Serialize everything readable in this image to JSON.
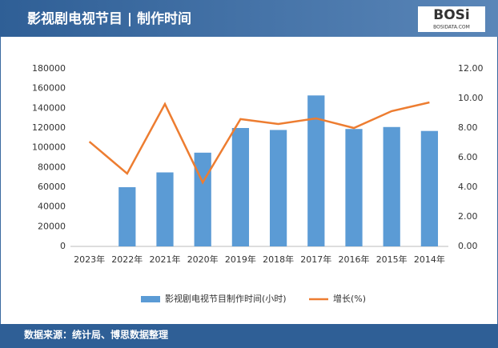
{
  "chart_data": {
    "type": "bar-line",
    "title": "影视剧电视节目 | 制作时间",
    "logo": "BOSi",
    "logo_sub": "BOSIDATA.COM",
    "source": "数据来源：统计局、博思数据整理",
    "categories": [
      "2023年",
      "2022年",
      "2021年",
      "2020年",
      "2019年",
      "2018年",
      "2017年",
      "2016年",
      "2015年",
      "2014年"
    ],
    "series": [
      {
        "name": "影视剧电视节目制作时间(小时)",
        "type": "bar",
        "color": "#5b9bd5",
        "values": [
          null,
          60000,
          75000,
          95000,
          120000,
          118000,
          153000,
          119000,
          121000,
          117000
        ]
      },
      {
        "name": "增长(%)",
        "type": "line",
        "axis": "y2",
        "color": "#ed7d31",
        "values": [
          7.08,
          4.92,
          9.62,
          4.32,
          8.6,
          8.27,
          8.65,
          8.0,
          9.14,
          9.73
        ]
      }
    ],
    "ylim": [
      0,
      180000
    ],
    "yticks": [
      0,
      20000,
      40000,
      60000,
      80000,
      100000,
      120000,
      140000,
      160000,
      180000
    ],
    "y2lim": [
      0,
      12
    ],
    "y2ticks": [
      {
        "value": 0,
        "label": "0.00"
      },
      {
        "value": 2,
        "label": "2.00"
      },
      {
        "value": 4,
        "label": "4.00"
      },
      {
        "value": 6,
        "label": "6.00"
      },
      {
        "value": 8,
        "label": "8.00"
      },
      {
        "value": 10,
        "label": "10.00"
      },
      {
        "value": 12,
        "label": "12.00"
      }
    ],
    "grid": false,
    "legend": "bottom"
  }
}
